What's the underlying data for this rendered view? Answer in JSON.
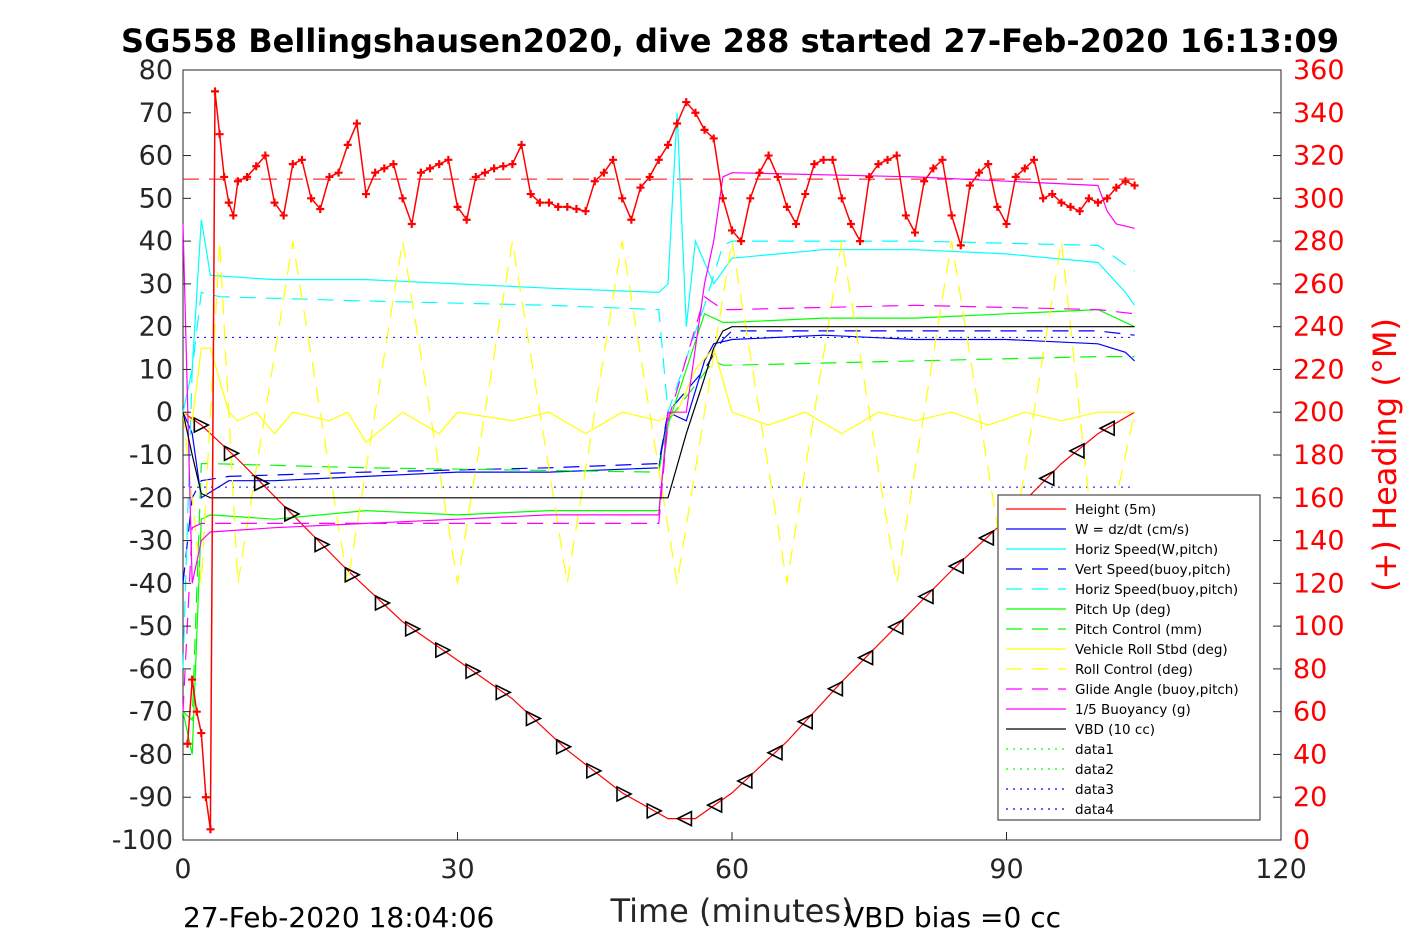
{
  "chart_data": {
    "type": "line",
    "title": "SG558 Bellingshausen2020, dive 288 started 27-Feb-2020 16:13:09",
    "xlabel": "Time (minutes)",
    "ylabel": "",
    "ylabel_right": "(+) Heading (°M)",
    "xlim": [
      0,
      120
    ],
    "ylim": [
      -100,
      80
    ],
    "ylim_right": [
      0,
      360
    ],
    "x_ticks": [
      "0",
      "30",
      "60",
      "90",
      "120"
    ],
    "y_ticks": [
      "80",
      "70",
      "60",
      "50",
      "40",
      "30",
      "20",
      "10",
      "0",
      "-10",
      "-20",
      "-30",
      "-40",
      "-50",
      "-60",
      "-70",
      "-80",
      "-90",
      "-100"
    ],
    "y_ticks_right": [
      "360",
      "340",
      "320",
      "300",
      "280",
      "260",
      "240",
      "220",
      "200",
      "180",
      "160",
      "140",
      "120",
      "100",
      "80",
      "60",
      "40",
      "20",
      "0"
    ],
    "grid": false,
    "legend_position": "lower-right",
    "footer_left": "27-Feb-2020 18:04:06",
    "footer_right": "VBD bias =0 cc",
    "series": [
      {
        "name": "Height (5m)",
        "color": "#ff0000",
        "style": "solid",
        "x": [
          0,
          2,
          6,
          12,
          18,
          24,
          30,
          36,
          42,
          48,
          53,
          56,
          60,
          66,
          72,
          78,
          84,
          90,
          96,
          100,
          104
        ],
        "y": [
          0,
          -3,
          -11,
          -24,
          -37,
          -49,
          -58,
          -67,
          -79,
          -89,
          -95,
          -95,
          -89,
          -77,
          -63,
          -50,
          -37,
          -25,
          -12,
          -5,
          0
        ]
      },
      {
        "name": "W = dz/dt (cm/s)",
        "color": "#0000ff",
        "style": "solid",
        "x": [
          0,
          1,
          2,
          5,
          10,
          20,
          30,
          40,
          52,
          53,
          55,
          57,
          58,
          60,
          70,
          80,
          90,
          100,
          103,
          104
        ],
        "y": [
          0,
          -5,
          -20,
          -16,
          -16,
          -15,
          -14,
          -14,
          -13,
          0,
          -2,
          12,
          16,
          17,
          18,
          17,
          17,
          16,
          14,
          12
        ]
      },
      {
        "name": "Horiz Speed(W,pitch)",
        "color": "#00ffff",
        "style": "solid",
        "x": [
          0,
          1,
          2,
          3,
          10,
          20,
          30,
          40,
          52,
          53,
          54,
          55,
          56,
          58,
          60,
          70,
          80,
          90,
          100,
          103,
          104
        ],
        "y": [
          0,
          10,
          45,
          32,
          31,
          31,
          30,
          29,
          28,
          30,
          70,
          20,
          40,
          30,
          36,
          38,
          38,
          37,
          35,
          28,
          25
        ]
      },
      {
        "name": "Vert Speed(buoy,pitch)",
        "color": "#0000ff",
        "style": "dashed",
        "x": [
          0,
          1,
          2,
          5,
          20,
          40,
          52,
          53,
          57,
          59,
          60,
          80,
          100,
          104
        ],
        "y": [
          -40,
          -20,
          -16,
          -15,
          -14,
          -13,
          -12,
          0,
          10,
          17,
          19,
          19,
          19,
          18
        ]
      },
      {
        "name": "Horiz Speed(buoy,pitch)",
        "color": "#00ffff",
        "style": "dashed",
        "x": [
          0,
          1,
          2,
          4,
          20,
          40,
          52,
          53,
          57,
          59,
          60,
          80,
          100,
          104
        ],
        "y": [
          -60,
          10,
          28,
          27,
          26,
          25,
          24,
          0,
          25,
          39,
          40,
          40,
          39,
          33
        ]
      },
      {
        "name": "Pitch Up (deg)",
        "color": "#00ff00",
        "style": "solid",
        "x": [
          0,
          1,
          2,
          3,
          10,
          20,
          30,
          40,
          52,
          53,
          57,
          59,
          60,
          70,
          80,
          90,
          100,
          104
        ],
        "y": [
          -70,
          -80,
          -25,
          -24,
          -25,
          -23,
          -24,
          -23,
          -23,
          -3,
          23,
          21,
          21,
          22,
          22,
          23,
          24,
          20
        ]
      },
      {
        "name": "Pitch Control (mm)",
        "color": "#00ff00",
        "style": "dashed",
        "x": [
          0,
          1,
          2,
          3,
          20,
          52,
          53,
          58,
          59,
          60,
          80,
          100,
          104
        ],
        "y": [
          -70,
          -72,
          -12,
          -12,
          -13,
          -14,
          -2,
          12,
          11,
          11,
          12,
          13,
          13
        ]
      },
      {
        "name": "Vehicle Roll Stbd (deg)",
        "color": "#ffff00",
        "style": "solid",
        "x": [
          0,
          1,
          2,
          3,
          5,
          6,
          8,
          10,
          12,
          16,
          18,
          20,
          24,
          28,
          30,
          36,
          40,
          44,
          48,
          52,
          54,
          56,
          58,
          60,
          64,
          68,
          72,
          76,
          80,
          84,
          88,
          92,
          96,
          100,
          104
        ],
        "y": [
          0,
          -2,
          15,
          15,
          0,
          -2,
          0,
          -5,
          0,
          -2,
          0,
          -7,
          0,
          -5,
          0,
          -2,
          0,
          -5,
          0,
          -2,
          0,
          10,
          15,
          0,
          -3,
          0,
          -5,
          0,
          -2,
          0,
          -3,
          0,
          -2,
          0,
          0
        ]
      },
      {
        "name": "Roll Control (deg)",
        "color": "#ffff00",
        "style": "dashed",
        "x": [
          0,
          2,
          4,
          6,
          12,
          18,
          24,
          30,
          36,
          42,
          48,
          54,
          60,
          66,
          72,
          78,
          84,
          90,
          96,
          100,
          104
        ],
        "y": [
          0,
          -40,
          40,
          -40,
          40,
          -40,
          40,
          -40,
          40,
          -40,
          40,
          -40,
          40,
          -40,
          40,
          -40,
          40,
          -40,
          40,
          -40,
          0
        ]
      },
      {
        "name": "Glide Angle (buoy,pitch)",
        "color": "#ff00ff",
        "style": "dashed",
        "x": [
          0,
          1,
          2,
          3,
          20,
          40,
          52,
          53,
          57,
          59,
          60,
          80,
          100,
          104
        ],
        "y": [
          -70,
          -27,
          -26,
          -26,
          -26,
          -26,
          -26,
          -2,
          27,
          24,
          24,
          25,
          24,
          23
        ]
      },
      {
        "name": "1/5 Buoyancy (g)",
        "color": "#ff00ff",
        "style": "solid",
        "x": [
          0,
          1,
          2,
          3,
          10,
          20,
          30,
          40,
          52,
          53,
          55,
          57,
          58,
          59,
          60,
          80,
          100,
          101,
          102,
          104
        ],
        "y": [
          44,
          -40,
          -30,
          -28,
          -27,
          -26,
          -25,
          -24,
          -24,
          0,
          0,
          30,
          40,
          55,
          56,
          55,
          53,
          47,
          44,
          43
        ]
      },
      {
        "name": "VBD (10 cc)",
        "color": "#000000",
        "style": "solid",
        "x": [
          0,
          1,
          2,
          3,
          10,
          20,
          30,
          40,
          52,
          53,
          55,
          57,
          58,
          59,
          60,
          80,
          100,
          104
        ],
        "y": [
          0,
          -10,
          -19,
          -20,
          -20,
          -20,
          -20,
          -20,
          -20,
          -20,
          -5,
          8,
          15,
          19,
          20,
          20,
          20,
          20
        ]
      },
      {
        "name": "data1",
        "color": "#00ff00",
        "style": "dotted",
        "x": [],
        "y": []
      },
      {
        "name": "data2",
        "color": "#00ff00",
        "style": "dotted",
        "x": [],
        "y": []
      },
      {
        "name": "data3",
        "color": "#0000ff",
        "style": "dotted",
        "x": [],
        "y": []
      },
      {
        "name": "data4",
        "color": "#0000ff",
        "style": "dotted",
        "x": [],
        "y": []
      }
    ],
    "reference_lines": [
      {
        "axis": "left",
        "y": 17.5,
        "x": [
          0,
          104
        ],
        "color": "#0000ff",
        "style": "dotted"
      },
      {
        "axis": "left",
        "y": -17.5,
        "x": [
          0,
          104
        ],
        "color": "#0000ff",
        "style": "dotted"
      },
      {
        "axis": "right",
        "y": 309,
        "x": [
          0,
          104
        ],
        "color": "#ff0000",
        "style": "dashed"
      }
    ],
    "heading": {
      "axis": "right",
      "color": "#ff0000",
      "marker": "+",
      "x": [
        0.5,
        1,
        1.5,
        2,
        2.5,
        3,
        3.5,
        4,
        4.5,
        5,
        5.5,
        6,
        7,
        8,
        9,
        10,
        11,
        12,
        13,
        14,
        15,
        16,
        17,
        18,
        19,
        20,
        21,
        22,
        23,
        24,
        25,
        26,
        27,
        28,
        29,
        30,
        31,
        32,
        33,
        34,
        35,
        36,
        37,
        38,
        39,
        40,
        41,
        42,
        43,
        44,
        45,
        46,
        47,
        48,
        49,
        50,
        51,
        52,
        53,
        54,
        55,
        56,
        57,
        58,
        59,
        60,
        61,
        62,
        63,
        64,
        65,
        66,
        67,
        68,
        69,
        70,
        71,
        72,
        73,
        74,
        75,
        76,
        77,
        78,
        79,
        80,
        81,
        82,
        83,
        84,
        85,
        86,
        87,
        88,
        89,
        90,
        91,
        92,
        93,
        94,
        95,
        96,
        97,
        98,
        99,
        100,
        101,
        102,
        103,
        104
      ],
      "y": [
        45,
        75,
        60,
        50,
        20,
        5,
        350,
        330,
        310,
        298,
        292,
        308,
        310,
        315,
        320,
        298,
        292,
        316,
        318,
        300,
        295,
        310,
        312,
        325,
        335,
        302,
        312,
        314,
        316,
        300,
        288,
        312,
        314,
        316,
        318,
        296,
        290,
        310,
        312,
        314,
        315,
        316,
        325,
        302,
        298,
        298,
        296,
        296,
        295,
        294,
        308,
        312,
        318,
        300,
        290,
        305,
        310,
        318,
        325,
        335,
        345,
        340,
        332,
        328,
        300,
        285,
        280,
        300,
        312,
        320,
        310,
        296,
        288,
        302,
        316,
        318,
        318,
        300,
        288,
        280,
        310,
        316,
        318,
        320,
        292,
        284,
        308,
        314,
        318,
        292,
        278,
        306,
        312,
        316,
        296,
        288,
        310,
        314,
        318,
        300,
        302,
        298,
        296,
        294,
        300,
        298,
        300,
        305,
        308,
        306
      ]
    }
  }
}
